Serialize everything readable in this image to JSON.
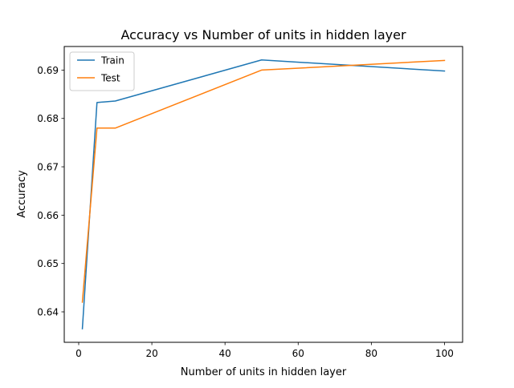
{
  "chart_data": {
    "type": "line",
    "title": "Accuracy vs Number of units in hidden layer",
    "xlabel": "Number of units in hidden layer",
    "ylabel": "Accuracy",
    "x": [
      1,
      5,
      10,
      50,
      100
    ],
    "series": [
      {
        "name": "Train",
        "color": "#1f77b4",
        "values": [
          0.6365,
          0.6833,
          0.6836,
          0.6921,
          0.6898
        ]
      },
      {
        "name": "Test",
        "color": "#ff7f0e",
        "values": [
          0.642,
          0.678,
          0.678,
          0.69,
          0.692
        ]
      }
    ],
    "xlim": [
      -3.95,
      104.95
    ],
    "ylim": [
      0.6337,
      0.69488
    ],
    "xticks": [
      0,
      20,
      40,
      60,
      80,
      100
    ],
    "xtick_labels": [
      "0",
      "20",
      "40",
      "60",
      "80",
      "100"
    ],
    "yticks": [
      0.64,
      0.65,
      0.66,
      0.67,
      0.68,
      0.69
    ],
    "ytick_labels": [
      "0.64",
      "0.65",
      "0.66",
      "0.67",
      "0.68",
      "0.69"
    ],
    "grid": false,
    "legend_position": "upper left"
  }
}
